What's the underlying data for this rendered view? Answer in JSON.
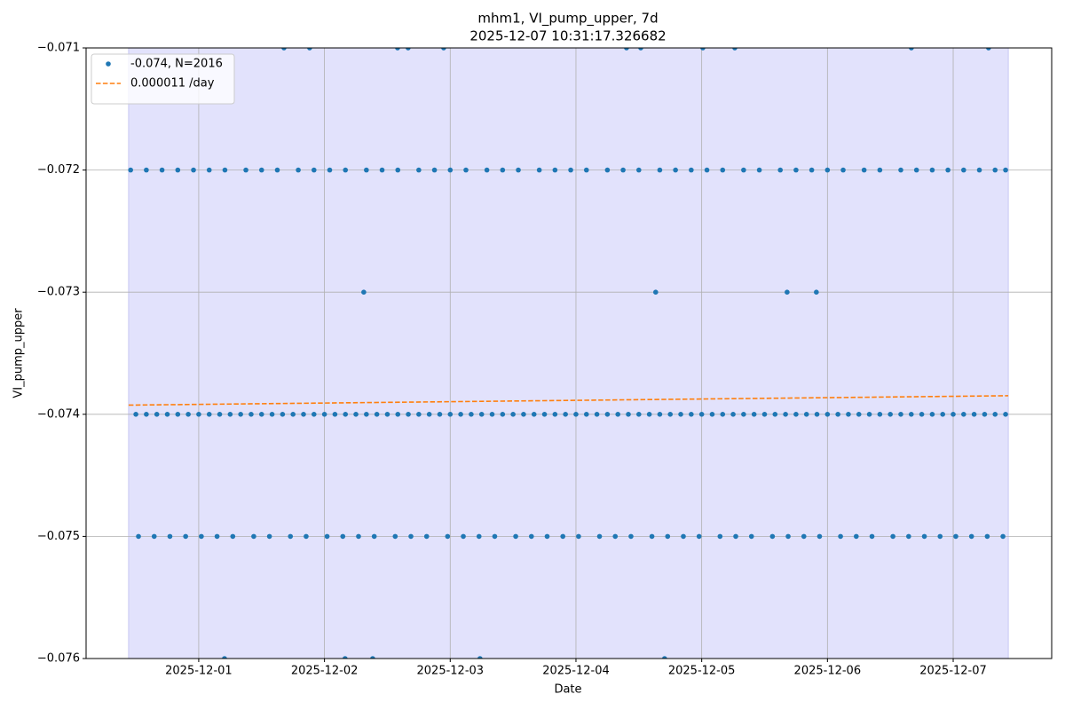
{
  "chart_data": {
    "type": "scatter",
    "title": "mhm1, VI_pump_upper, 7d",
    "subtitle": "2025-12-07 10:31:17.326682",
    "x_label": "Date",
    "y_label": "VI_pump_upper",
    "xlim": [
      "2025-11-30 02:30",
      "2025-12-07 18:48"
    ],
    "xticks": [
      "2025-12-01",
      "2025-12-02",
      "2025-12-03",
      "2025-12-04",
      "2025-12-05",
      "2025-12-06",
      "2025-12-07"
    ],
    "ylim": [
      -0.076,
      -0.071
    ],
    "yticks": [
      {
        "value": -0.076,
        "label": "−0.076"
      },
      {
        "value": -0.075,
        "label": "−0.075"
      },
      {
        "value": -0.074,
        "label": "−0.074"
      },
      {
        "value": -0.073,
        "label": "−0.073"
      },
      {
        "value": -0.072,
        "label": "−0.072"
      },
      {
        "value": -0.071,
        "label": "−0.071"
      }
    ],
    "grid": true,
    "legend": "upper left",
    "shaded_range": [
      "2025-11-30 10:37",
      "2025-12-07 10:31"
    ],
    "shade_color": "#e2e2fc",
    "series": [
      {
        "name": "-0.074, N=2016",
        "type": "scatter",
        "color": "#1f77b4",
        "x": [
          "2025-11-30 12:00",
          "2025-11-30 14:00",
          "2025-11-30 16:00",
          "2025-11-30 18:00",
          "2025-11-30 20:00",
          "2025-11-30 22:00",
          "2025-12-01 00:00",
          "2025-12-01 02:00",
          "2025-12-01 04:00",
          "2025-12-01 06:00",
          "2025-12-01 08:00",
          "2025-12-01 10:00",
          "2025-12-01 12:00",
          "2025-12-01 14:00",
          "2025-12-01 16:00",
          "2025-12-01 18:00",
          "2025-12-01 20:00",
          "2025-12-01 22:00",
          "2025-12-02 00:00",
          "2025-12-02 02:00",
          "2025-12-02 04:00",
          "2025-12-02 06:00",
          "2025-12-02 08:00",
          "2025-12-02 10:00",
          "2025-12-02 12:00",
          "2025-12-02 14:00",
          "2025-12-02 16:00",
          "2025-12-02 18:00",
          "2025-12-02 20:00",
          "2025-12-02 22:00",
          "2025-12-03 00:00",
          "2025-12-03 02:00",
          "2025-12-03 04:00",
          "2025-12-03 06:00",
          "2025-12-03 08:00",
          "2025-12-03 10:00",
          "2025-12-03 12:00",
          "2025-12-03 14:00",
          "2025-12-03 16:00",
          "2025-12-03 18:00",
          "2025-12-03 20:00",
          "2025-12-03 22:00",
          "2025-12-04 00:00",
          "2025-12-04 02:00",
          "2025-12-04 04:00",
          "2025-12-04 06:00",
          "2025-12-04 08:00",
          "2025-12-04 10:00",
          "2025-12-04 12:00",
          "2025-12-04 14:00",
          "2025-12-04 16:00",
          "2025-12-04 18:00",
          "2025-12-04 20:00",
          "2025-12-04 22:00",
          "2025-12-05 00:00",
          "2025-12-05 02:00",
          "2025-12-05 04:00",
          "2025-12-05 06:00",
          "2025-12-05 08:00",
          "2025-12-05 10:00",
          "2025-12-05 12:00",
          "2025-12-05 14:00",
          "2025-12-05 16:00",
          "2025-12-05 18:00",
          "2025-12-05 20:00",
          "2025-12-05 22:00",
          "2025-12-06 00:00",
          "2025-12-06 02:00",
          "2025-12-06 04:00",
          "2025-12-06 06:00",
          "2025-12-06 08:00",
          "2025-12-06 10:00",
          "2025-12-06 12:00",
          "2025-12-06 14:00",
          "2025-12-06 16:00",
          "2025-12-06 18:00",
          "2025-12-06 20:00",
          "2025-12-06 22:00",
          "2025-12-07 00:00",
          "2025-12-07 02:00",
          "2025-12-07 04:00",
          "2025-12-07 06:00",
          "2025-12-07 08:00",
          "2025-12-07 10:00",
          "2025-11-30 11:00",
          "2025-11-30 14:00",
          "2025-11-30 17:00",
          "2025-11-30 20:00",
          "2025-11-30 23:00",
          "2025-12-01 02:00",
          "2025-12-01 05:00",
          "2025-12-01 09:00",
          "2025-12-01 12:00",
          "2025-12-01 15:00",
          "2025-12-01 19:00",
          "2025-12-01 22:00",
          "2025-12-02 01:00",
          "2025-12-02 04:00",
          "2025-12-02 08:00",
          "2025-12-02 11:00",
          "2025-12-02 14:00",
          "2025-12-02 18:00",
          "2025-12-02 21:00",
          "2025-12-03 00:00",
          "2025-12-03 03:00",
          "2025-12-03 07:00",
          "2025-12-03 10:00",
          "2025-12-03 13:00",
          "2025-12-03 17:00",
          "2025-12-03 20:00",
          "2025-12-03 23:00",
          "2025-12-04 02:00",
          "2025-12-04 06:00",
          "2025-12-04 09:00",
          "2025-12-04 12:00",
          "2025-12-04 16:00",
          "2025-12-04 19:00",
          "2025-12-04 22:00",
          "2025-12-05 01:00",
          "2025-12-05 04:00",
          "2025-12-05 08:00",
          "2025-12-05 11:00",
          "2025-12-05 15:00",
          "2025-12-05 18:00",
          "2025-12-05 21:00",
          "2025-12-06 00:00",
          "2025-12-06 03:00",
          "2025-12-06 07:00",
          "2025-12-06 10:00",
          "2025-12-06 14:00",
          "2025-12-06 17:00",
          "2025-12-06 20:00",
          "2025-12-06 23:00",
          "2025-12-07 02:00",
          "2025-12-07 05:00",
          "2025-12-07 08:00",
          "2025-12-07 10:00",
          "2025-11-30 12:30",
          "2025-11-30 15:30",
          "2025-11-30 18:30",
          "2025-11-30 21:30",
          "2025-12-01 00:30",
          "2025-12-01 03:30",
          "2025-12-01 06:30",
          "2025-12-01 10:30",
          "2025-12-01 13:30",
          "2025-12-01 17:30",
          "2025-12-01 20:30",
          "2025-12-02 00:30",
          "2025-12-02 03:30",
          "2025-12-02 06:30",
          "2025-12-02 09:30",
          "2025-12-02 13:30",
          "2025-12-02 16:30",
          "2025-12-02 19:30",
          "2025-12-02 23:30",
          "2025-12-03 02:30",
          "2025-12-03 05:30",
          "2025-12-03 08:30",
          "2025-12-03 12:30",
          "2025-12-03 15:30",
          "2025-12-03 18:30",
          "2025-12-03 21:30",
          "2025-12-04 00:30",
          "2025-12-04 04:30",
          "2025-12-04 07:30",
          "2025-12-04 10:30",
          "2025-12-04 14:30",
          "2025-12-04 17:30",
          "2025-12-04 20:30",
          "2025-12-04 23:30",
          "2025-12-05 03:30",
          "2025-12-05 06:30",
          "2025-12-05 09:30",
          "2025-12-05 13:30",
          "2025-12-05 16:30",
          "2025-12-05 19:30",
          "2025-12-05 22:30",
          "2025-12-06 02:30",
          "2025-12-06 05:30",
          "2025-12-06 08:30",
          "2025-12-06 12:30",
          "2025-12-06 15:30",
          "2025-12-06 18:30",
          "2025-12-06 21:30",
          "2025-12-07 00:30",
          "2025-12-07 03:30",
          "2025-12-07 06:30",
          "2025-12-07 09:30",
          "2025-12-01 16:16",
          "2025-12-01 21:10",
          "2025-12-02 13:57",
          "2025-12-02 15:58",
          "2025-12-02 22:45",
          "2025-12-04 09:39",
          "2025-12-04 12:22",
          "2025-12-05 00:13",
          "2025-12-05 06:19",
          "2025-12-06 16:01",
          "2025-12-07 06:45",
          "2025-12-02 07:30",
          "2025-12-04 15:13",
          "2025-12-05 16:18",
          "2025-12-05 21:53",
          "2025-12-01 04:55",
          "2025-12-02 03:56",
          "2025-12-02 09:12",
          "2025-12-03 05:41",
          "2025-12-04 16:55"
        ],
        "values": [
          -0.074,
          -0.074,
          -0.074,
          -0.074,
          -0.074,
          -0.074,
          -0.074,
          -0.074,
          -0.074,
          -0.074,
          -0.074,
          -0.074,
          -0.074,
          -0.074,
          -0.074,
          -0.074,
          -0.074,
          -0.074,
          -0.074,
          -0.074,
          -0.074,
          -0.074,
          -0.074,
          -0.074,
          -0.074,
          -0.074,
          -0.074,
          -0.074,
          -0.074,
          -0.074,
          -0.074,
          -0.074,
          -0.074,
          -0.074,
          -0.074,
          -0.074,
          -0.074,
          -0.074,
          -0.074,
          -0.074,
          -0.074,
          -0.074,
          -0.074,
          -0.074,
          -0.074,
          -0.074,
          -0.074,
          -0.074,
          -0.074,
          -0.074,
          -0.074,
          -0.074,
          -0.074,
          -0.074,
          -0.074,
          -0.074,
          -0.074,
          -0.074,
          -0.074,
          -0.074,
          -0.074,
          -0.074,
          -0.074,
          -0.074,
          -0.074,
          -0.074,
          -0.074,
          -0.074,
          -0.074,
          -0.074,
          -0.074,
          -0.074,
          -0.074,
          -0.074,
          -0.074,
          -0.074,
          -0.074,
          -0.074,
          -0.074,
          -0.074,
          -0.074,
          -0.074,
          -0.074,
          -0.074,
          -0.072,
          -0.072,
          -0.072,
          -0.072,
          -0.072,
          -0.072,
          -0.072,
          -0.072,
          -0.072,
          -0.072,
          -0.072,
          -0.072,
          -0.072,
          -0.072,
          -0.072,
          -0.072,
          -0.072,
          -0.072,
          -0.072,
          -0.072,
          -0.072,
          -0.072,
          -0.072,
          -0.072,
          -0.072,
          -0.072,
          -0.072,
          -0.072,
          -0.072,
          -0.072,
          -0.072,
          -0.072,
          -0.072,
          -0.072,
          -0.072,
          -0.072,
          -0.072,
          -0.072,
          -0.072,
          -0.072,
          -0.072,
          -0.072,
          -0.072,
          -0.072,
          -0.072,
          -0.072,
          -0.072,
          -0.072,
          -0.072,
          -0.072,
          -0.072,
          -0.072,
          -0.072,
          -0.075,
          -0.075,
          -0.075,
          -0.075,
          -0.075,
          -0.075,
          -0.075,
          -0.075,
          -0.075,
          -0.075,
          -0.075,
          -0.075,
          -0.075,
          -0.075,
          -0.075,
          -0.075,
          -0.075,
          -0.075,
          -0.075,
          -0.075,
          -0.075,
          -0.075,
          -0.075,
          -0.075,
          -0.075,
          -0.075,
          -0.075,
          -0.075,
          -0.075,
          -0.075,
          -0.075,
          -0.075,
          -0.075,
          -0.075,
          -0.075,
          -0.075,
          -0.075,
          -0.075,
          -0.075,
          -0.075,
          -0.075,
          -0.075,
          -0.075,
          -0.075,
          -0.075,
          -0.075,
          -0.075,
          -0.075,
          -0.075,
          -0.075,
          -0.075,
          -0.075,
          -0.071,
          -0.071,
          -0.071,
          -0.071,
          -0.071,
          -0.071,
          -0.071,
          -0.071,
          -0.071,
          -0.071,
          -0.071,
          -0.073,
          -0.073,
          -0.073,
          -0.073,
          -0.076,
          -0.076,
          -0.076,
          -0.076,
          -0.076
        ]
      },
      {
        "name": "0.000011 /day",
        "type": "line",
        "dashed": true,
        "color": "#ff7f0e",
        "x": [
          "2025-11-30 10:37",
          "2025-12-07 10:31"
        ],
        "values": [
          -0.073925,
          -0.073848
        ]
      }
    ]
  }
}
